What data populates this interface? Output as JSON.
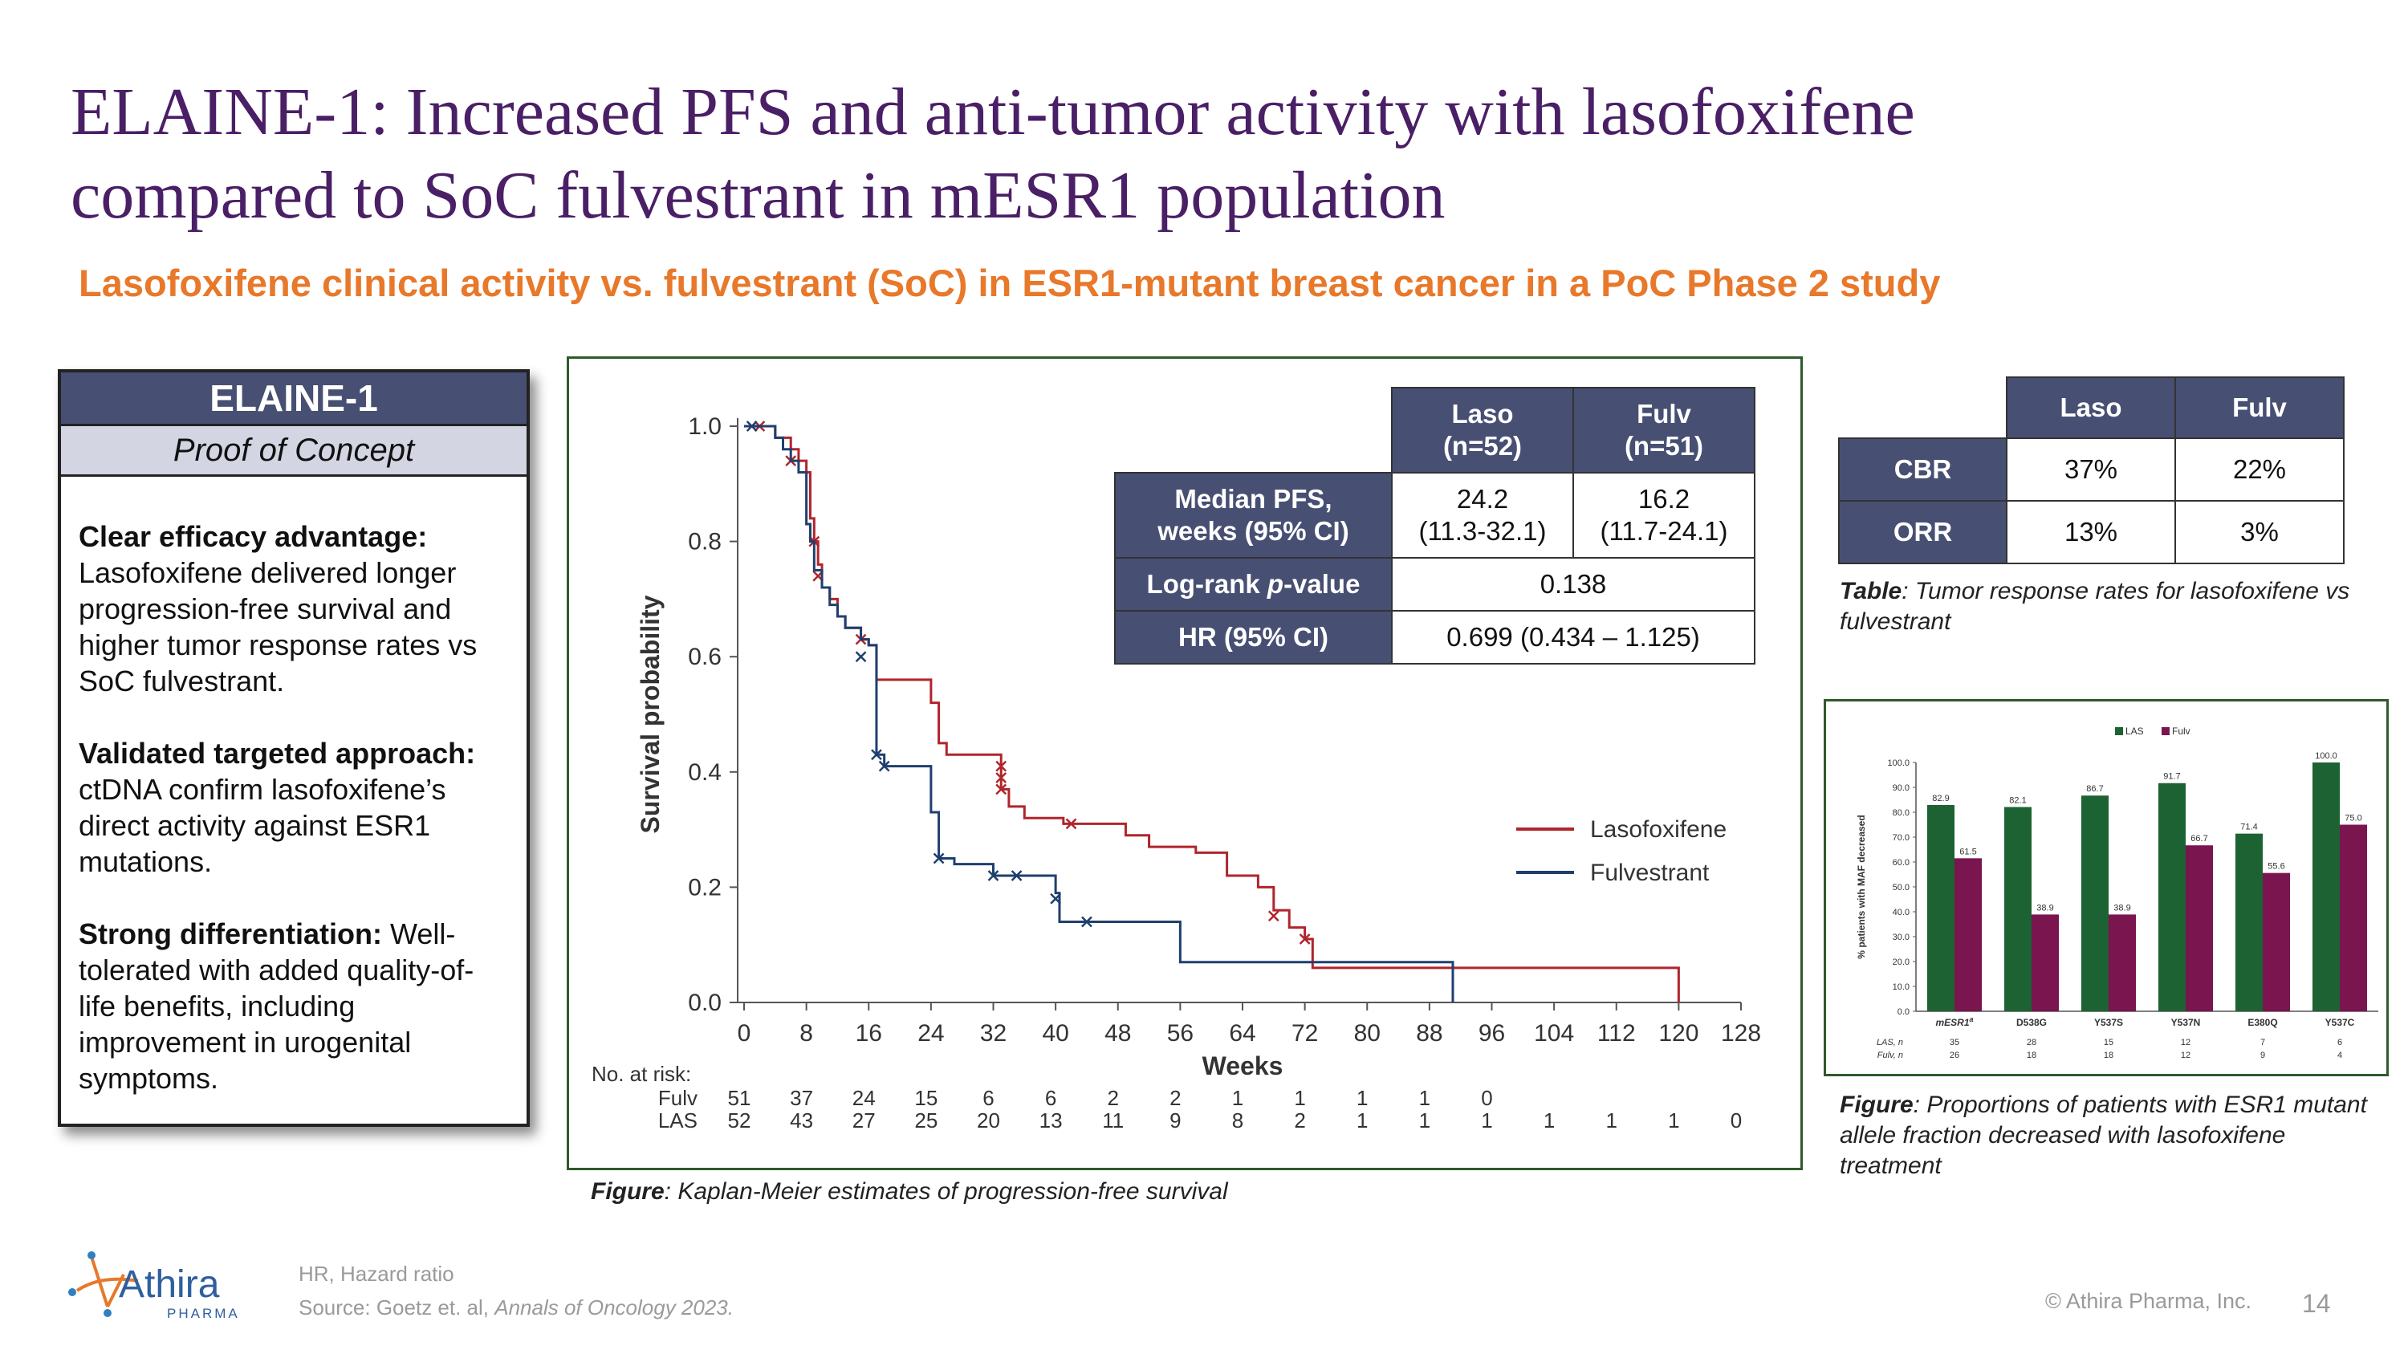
{
  "title": {
    "line1": "ELAINE-1: Increased PFS and anti-tumor activity with lasofoxifene",
    "line2": "compared to SoC fulvestrant in mESR1 population"
  },
  "subtitle": "Lasofoxifene clinical activity vs. fulvestrant (SoC) in ESR1-mutant breast cancer in a PoC Phase 2 study",
  "elaine_box": {
    "header": "ELAINE-1",
    "subheader": "Proof of Concept",
    "points": [
      {
        "heading": "Clear efficacy advantage:",
        "text": "Lasofoxifene delivered longer progression-free survival and higher tumor response rates vs SoC fulvestrant."
      },
      {
        "heading": "Validated targeted approach:",
        "text": "ctDNA confirm lasofoxifene’s direct activity against ESR1 mutations."
      },
      {
        "heading": "Strong differentiation:",
        "text": "Well-tolerated with added quality-of-life benefits, including improvement in urogenital symptoms."
      }
    ]
  },
  "pfs_table": {
    "col_laso": "Laso",
    "col_laso_n": "(n=52)",
    "col_fulv": "Fulv",
    "col_fulv_n": "(n=51)",
    "row1_label_a": "Median PFS,",
    "row1_label_b": "weeks (95% CI)",
    "row1_laso_a": "24.2",
    "row1_laso_b": "(11.3-32.1)",
    "row1_fulv_a": "16.2",
    "row1_fulv_b": "(11.7-24.1)",
    "row2_label_a": "Log-rank ",
    "row2_label_p": "p",
    "row2_label_b": "-value",
    "row2_value": "0.138",
    "row3_label": "HR (95% CI)",
    "row3_value": "0.699 (0.434 – 1.125)"
  },
  "km_caption": {
    "bold": "Figure",
    "text": ": Kaplan-Meier estimates of progression-free survival"
  },
  "response_table": {
    "col_laso": "Laso",
    "col_fulv": "Fulv",
    "rows": [
      {
        "label": "CBR",
        "laso": "37%",
        "fulv": "22%"
      },
      {
        "label": "ORR",
        "laso": "13%",
        "fulv": "3%"
      }
    ]
  },
  "response_caption": {
    "bold": "Table",
    "text": ": Tumor response rates for lasofoxifene vs fulvestrant"
  },
  "bar_caption": {
    "bold": "Figure",
    "text": ": Proportions of patients with ESR1 mutant allele fraction decreased with lasofoxifene treatment"
  },
  "chart_data": [
    {
      "type": "line",
      "title": "",
      "xlabel": "Weeks",
      "ylabel": "Survival probability",
      "xlim": [
        0,
        128
      ],
      "ylim": [
        0,
        1.0
      ],
      "x_ticks": [
        0,
        8,
        16,
        24,
        32,
        40,
        48,
        56,
        64,
        72,
        80,
        88,
        96,
        104,
        112,
        120,
        128
      ],
      "y_ticks": [
        "0.0",
        "0.2",
        "0.4",
        "0.6",
        "0.8",
        "1.0"
      ],
      "series": [
        {
          "name": "Lasofoxifene",
          "color": "#b0252c",
          "steps": [
            [
              0,
              1.0
            ],
            [
              4,
              0.98
            ],
            [
              6,
              0.96
            ],
            [
              7,
              0.94
            ],
            [
              8,
              0.92
            ],
            [
              8.5,
              0.84
            ],
            [
              9,
              0.8
            ],
            [
              9.5,
              0.76
            ],
            [
              10,
              0.72
            ],
            [
              11,
              0.7
            ],
            [
              12,
              0.67
            ],
            [
              13,
              0.65
            ],
            [
              15,
              0.63
            ],
            [
              16,
              0.62
            ],
            [
              17,
              0.56
            ],
            [
              24,
              0.52
            ],
            [
              25,
              0.45
            ],
            [
              26,
              0.43
            ],
            [
              33,
              0.37
            ],
            [
              34,
              0.34
            ],
            [
              36,
              0.32
            ],
            [
              41,
              0.31
            ],
            [
              49,
              0.29
            ],
            [
              52,
              0.27
            ],
            [
              58,
              0.26
            ],
            [
              62,
              0.22
            ],
            [
              66,
              0.2
            ],
            [
              68,
              0.16
            ],
            [
              70,
              0.13
            ],
            [
              72,
              0.11
            ],
            [
              73,
              0.06
            ],
            [
              120,
              0.0
            ]
          ],
          "censor": [
            [
              2,
              1.0
            ],
            [
              6,
              0.94
            ],
            [
              9,
              0.8
            ],
            [
              9.5,
              0.74
            ],
            [
              15,
              0.63
            ],
            [
              33,
              0.41
            ],
            [
              33,
              0.39
            ],
            [
              33,
              0.37
            ],
            [
              42,
              0.31
            ],
            [
              68,
              0.15
            ],
            [
              72,
              0.11
            ]
          ]
        },
        {
          "name": "Fulvestrant",
          "color": "#1f3f6e",
          "steps": [
            [
              0,
              1.0
            ],
            [
              4,
              0.98
            ],
            [
              5,
              0.96
            ],
            [
              6,
              0.94
            ],
            [
              7,
              0.92
            ],
            [
              8,
              0.83
            ],
            [
              8.5,
              0.8
            ],
            [
              9,
              0.75
            ],
            [
              10,
              0.72
            ],
            [
              11,
              0.69
            ],
            [
              12,
              0.67
            ],
            [
              13,
              0.65
            ],
            [
              15,
              0.63
            ],
            [
              16,
              0.62
            ],
            [
              17,
              0.43
            ],
            [
              18,
              0.41
            ],
            [
              24,
              0.33
            ],
            [
              25,
              0.25
            ],
            [
              27,
              0.24
            ],
            [
              32,
              0.22
            ],
            [
              40,
              0.19
            ],
            [
              40.5,
              0.14
            ],
            [
              56,
              0.07
            ],
            [
              91,
              0.0
            ]
          ],
          "censor": [
            [
              1,
              1.0
            ],
            [
              15,
              0.6
            ],
            [
              17,
              0.43
            ],
            [
              18,
              0.41
            ],
            [
              25,
              0.25
            ],
            [
              32,
              0.22
            ],
            [
              35,
              0.22
            ],
            [
              40,
              0.18
            ],
            [
              44,
              0.14
            ]
          ]
        }
      ],
      "at_risk_label": "No. at risk:",
      "at_risk": [
        {
          "name": "Fulv",
          "values": [
            "51",
            "37",
            "24",
            "15",
            "6",
            "6",
            "2",
            "2",
            "1",
            "1",
            "1",
            "1",
            "0",
            "",
            "",
            "",
            ""
          ]
        },
        {
          "name": "LAS",
          "values": [
            "52",
            "43",
            "27",
            "25",
            "20",
            "13",
            "11",
            "9",
            "8",
            "2",
            "1",
            "1",
            "1",
            "1",
            "1",
            "1",
            "0"
          ]
        }
      ]
    },
    {
      "type": "bar",
      "title": "",
      "xlabel": "",
      "ylabel": "% patients with MAF decreased",
      "ylim": [
        0,
        100
      ],
      "y_ticks": [
        "0.0",
        "10.0",
        "20.0",
        "30.0",
        "40.0",
        "50.0",
        "60.0",
        "70.0",
        "80.0",
        "90.0",
        "100.0"
      ],
      "categories": [
        "mESR1",
        "D538G",
        "Y537S",
        "Y537N",
        "E380Q",
        "Y537C"
      ],
      "category_superscript": [
        "a",
        "",
        "",
        "",
        "",
        ""
      ],
      "series": [
        {
          "name": "LAS",
          "color": "#1d6233",
          "values": [
            82.9,
            82.1,
            86.7,
            91.7,
            71.4,
            100.0
          ],
          "labels": [
            "82.9",
            "82.1",
            "86.7",
            "91.7",
            "71.4",
            "100.0"
          ]
        },
        {
          "name": "Fulv",
          "color": "#7a1550",
          "values": [
            61.5,
            38.9,
            38.9,
            66.7,
            55.6,
            75.0
          ],
          "labels": [
            "61.5",
            "38.9",
            "38.9",
            "66.7",
            "55.6",
            "75.0"
          ]
        }
      ],
      "n_rows": [
        {
          "name": "LAS, n",
          "values": [
            "35",
            "28",
            "15",
            "12",
            "7",
            "6"
          ]
        },
        {
          "name": "Fulv, n",
          "values": [
            "26",
            "18",
            "18",
            "12",
            "9",
            "4"
          ]
        }
      ]
    }
  ],
  "footer": {
    "logo_text": "Athira",
    "logo_sub": "PHARMA",
    "footnote1": "HR, Hazard ratio",
    "footnote2_prefix": "Source: Goetz et. al, ",
    "footnote2_italic": "Annals of Oncology 2023.",
    "copyright": "© Athira Pharma, Inc.",
    "page": "14"
  }
}
